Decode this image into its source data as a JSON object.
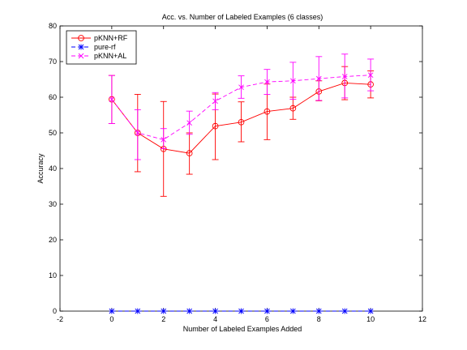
{
  "chart_data": {
    "type": "line",
    "title": "Acc. vs. Number of Labeled Examples (6 classes)",
    "xlabel": "Number of Labeled Examples Added",
    "ylabel": "Accuracy",
    "xlim": [
      -2,
      12
    ],
    "ylim": [
      0,
      80
    ],
    "xticks": [
      -2,
      0,
      2,
      4,
      6,
      8,
      10,
      12
    ],
    "yticks": [
      0,
      10,
      20,
      30,
      40,
      50,
      60,
      70,
      80
    ],
    "grid": false,
    "legend_position": "top-left",
    "x": [
      0,
      1,
      2,
      3,
      4,
      5,
      6,
      7,
      8,
      9,
      10
    ],
    "series": [
      {
        "name": "pKNN+RF",
        "color": "#ff0000",
        "marker": "circle",
        "dash": "solid",
        "values": [
          59.4,
          50.0,
          45.5,
          44.3,
          51.9,
          53.0,
          56.0,
          56.9,
          61.6,
          64.0,
          63.6
        ],
        "err_low": [
          52.6,
          39.1,
          32.2,
          38.4,
          42.5,
          47.5,
          48.1,
          53.8,
          59.0,
          59.3,
          59.8
        ],
        "err_high": [
          66.1,
          60.8,
          58.8,
          50.0,
          60.9,
          58.7,
          63.7,
          60.0,
          64.6,
          68.6,
          67.4
        ]
      },
      {
        "name": "pure-rf",
        "color": "#0000ff",
        "marker": "star",
        "dash": "dashed",
        "values": [
          0,
          0,
          0,
          0,
          0,
          0,
          0,
          0,
          0,
          0,
          0
        ]
      },
      {
        "name": "pKNN+AL",
        "color": "#ff00ff",
        "marker": "x",
        "dash": "dashed",
        "values": [
          59.4,
          50.0,
          48.1,
          52.8,
          58.9,
          62.8,
          64.3,
          64.6,
          65.2,
          65.8,
          66.2
        ],
        "err_low": [
          52.6,
          42.5,
          45.6,
          49.6,
          56.5,
          59.7,
          60.8,
          59.4,
          59.1,
          59.8,
          61.8
        ],
        "err_high": [
          66.1,
          56.5,
          51.2,
          56.1,
          61.3,
          66.0,
          67.8,
          69.8,
          71.4,
          72.1,
          70.7
        ]
      }
    ]
  }
}
